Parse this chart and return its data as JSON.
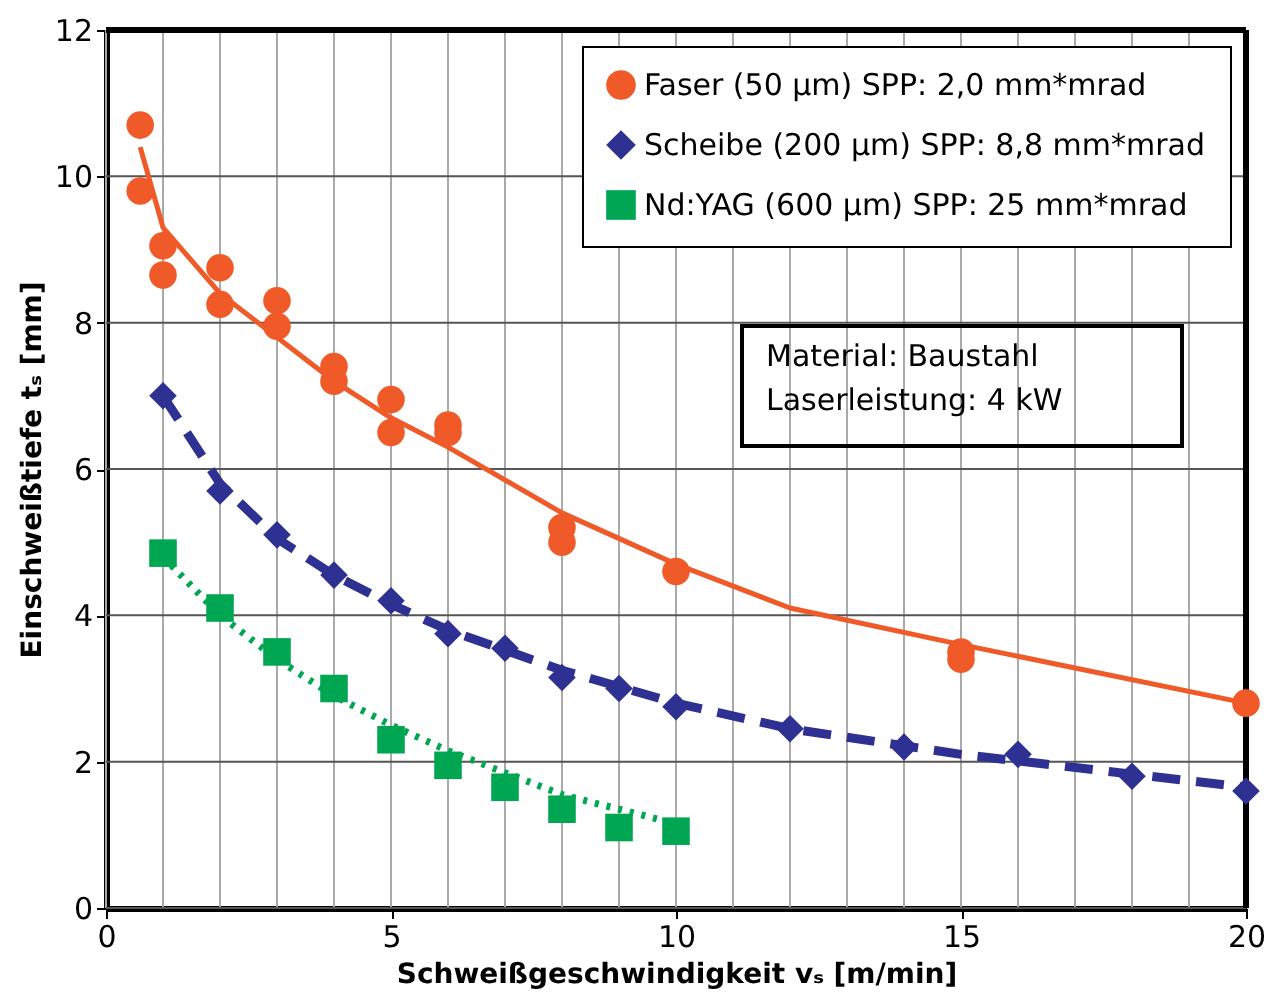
{
  "chart_data": {
    "type": "scatter",
    "xlabel": "Schweißgeschwindigkeit vₛ [m/min]",
    "ylabel": "Einschweißtiefe tₛ [mm]",
    "xlim": [
      0,
      20
    ],
    "ylim": [
      0,
      12
    ],
    "xticks": [
      0,
      {
        "value": 1,
        "label": null
      },
      {
        "value": 2,
        "label": null
      },
      {
        "value": 3,
        "label": null
      },
      {
        "value": 4,
        "label": null
      },
      5,
      {
        "value": 6,
        "label": null
      },
      {
        "value": 7,
        "label": null
      },
      {
        "value": 8,
        "label": null
      },
      {
        "value": 9,
        "label": null
      },
      10,
      {
        "value": 11,
        "label": null
      },
      {
        "value": 12,
        "label": null
      },
      {
        "value": 13,
        "label": null
      },
      {
        "value": 14,
        "label": null
      },
      15,
      {
        "value": 16,
        "label": null
      },
      {
        "value": 17,
        "label": null
      },
      {
        "value": 18,
        "label": null
      },
      {
        "value": 19,
        "label": null
      },
      20
    ],
    "yticks": [
      0,
      2,
      4,
      6,
      8,
      10,
      12
    ],
    "grid": true,
    "legend": "top right",
    "annotations": [
      "Material: Baustahl",
      "Laserleistung: 4 kW"
    ],
    "series": [
      {
        "name": "Faser (50 μm)   SPP: 2,0 mm*mrad",
        "type": "scatter",
        "marker": "circle",
        "color": "#ef5a28",
        "x": [
          0.6,
          0.6,
          1,
          1,
          2,
          2,
          3,
          3,
          4,
          4,
          5,
          5,
          6,
          6,
          8,
          8,
          10,
          15,
          15,
          20
        ],
        "values": [
          10.7,
          9.8,
          9.05,
          8.65,
          8.75,
          8.25,
          8.3,
          7.95,
          7.4,
          7.2,
          6.95,
          6.5,
          6.6,
          6.5,
          5.2,
          5.0,
          4.6,
          3.5,
          3.4,
          2.8
        ]
      },
      {
        "type": "line",
        "line_style": "solid",
        "color": "#ef5a28",
        "x": [
          0.6,
          1,
          2,
          3,
          4,
          5,
          6,
          8,
          10,
          12,
          15,
          20
        ],
        "values": [
          10.4,
          9.3,
          8.4,
          7.8,
          7.2,
          6.7,
          6.3,
          5.4,
          4.7,
          4.1,
          3.6,
          2.8
        ]
      },
      {
        "name": "Scheibe (200 μm) SPP: 8,8 mm*mrad",
        "type": "scatter",
        "marker": "diamond",
        "color": "#2e3192",
        "x": [
          1,
          2,
          3,
          4,
          5,
          6,
          7,
          8,
          9,
          10,
          12,
          14,
          16,
          18,
          20
        ],
        "values": [
          7.0,
          5.7,
          5.1,
          4.55,
          4.2,
          3.75,
          3.55,
          3.15,
          3.0,
          2.75,
          2.45,
          2.2,
          2.1,
          1.8,
          1.6
        ]
      },
      {
        "type": "line",
        "line_style": "dashed",
        "color": "#2e3192",
        "x": [
          1,
          2,
          3,
          4,
          5,
          6,
          8,
          10,
          12,
          15,
          20
        ],
        "values": [
          7.0,
          5.8,
          5.05,
          4.55,
          4.15,
          3.8,
          3.25,
          2.8,
          2.45,
          2.1,
          1.65
        ]
      },
      {
        "name": "Nd:YAG (600 μm)  SPP: 25 mm*mrad",
        "type": "scatter",
        "marker": "square",
        "color": "#00a651",
        "x": [
          1,
          2,
          3,
          4,
          5,
          6,
          7,
          8,
          9,
          10
        ],
        "values": [
          4.85,
          4.1,
          3.5,
          3.0,
          2.3,
          1.95,
          1.65,
          1.35,
          1.1,
          1.05
        ]
      },
      {
        "type": "line",
        "line_style": "dotted",
        "color": "#00a651",
        "x": [
          1,
          2,
          3,
          4,
          5,
          6,
          7,
          8,
          9,
          10
        ],
        "values": [
          4.8,
          4.0,
          3.4,
          2.9,
          2.5,
          2.15,
          1.85,
          1.55,
          1.35,
          1.15
        ]
      }
    ]
  }
}
